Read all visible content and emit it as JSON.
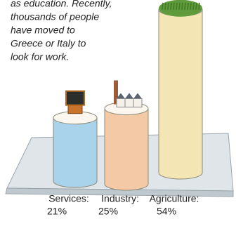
{
  "chart_data": {
    "type": "bar",
    "annotation": [
      "as education. Recently,",
      "thousands of people",
      "have moved to",
      "Greece or Italy to",
      "look for work."
    ],
    "categories": [
      "Services:",
      "Industry:",
      "Agriculture:"
    ],
    "values": [
      21,
      25,
      54
    ],
    "value_labels": [
      "21%",
      "25%",
      "54%"
    ],
    "colors": [
      "#a8d3ea",
      "#f4caa6",
      "#f3e6b4"
    ]
  }
}
